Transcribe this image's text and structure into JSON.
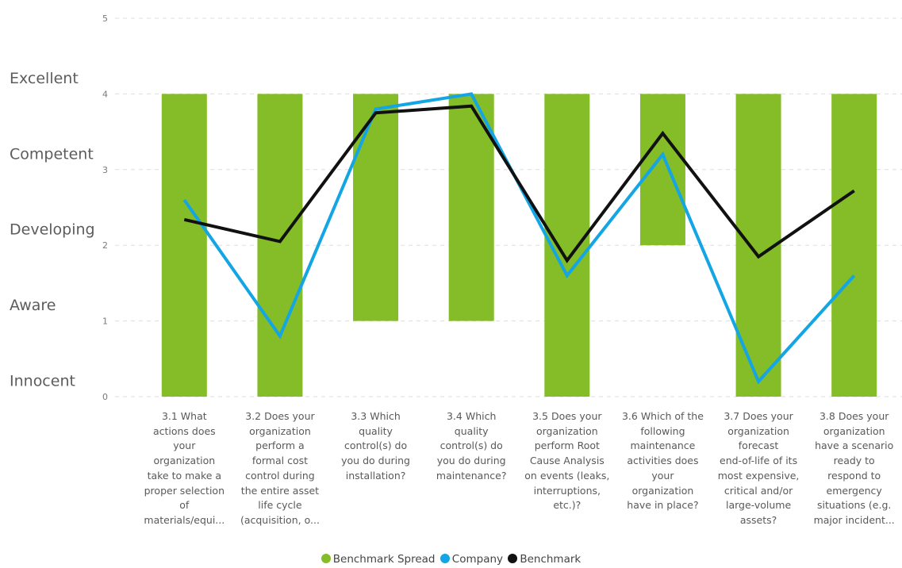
{
  "colors": {
    "spread": "#84bd27",
    "company": "#13a5e4",
    "benchmark": "#111111",
    "level_text": "#5c5c5c",
    "tick_text": "#7a7a7a",
    "grid": "#dddddd"
  },
  "levels": [
    "Innocent",
    "Aware",
    "Developing",
    "Competent",
    "Excellent"
  ],
  "chart_data": {
    "type": "bar",
    "ylim": [
      0,
      5
    ],
    "y_ticks": [
      "0",
      "1",
      "2",
      "3",
      "4",
      "5"
    ],
    "grid": "horizontal dashed",
    "legend_position": "bottom-center",
    "categories": [
      "3.1 What actions does your organization take to make a proper selection of materials/equi...",
      "3.2 Does your organization perform a formal cost control during the entire asset life cycle (acquisition, o...",
      "3.3 Which quality control(s) do you do during installation?",
      "3.4 Which quality control(s) do you do during maintenance?",
      "3.5 Does your organization perform Root Cause Analysis on events (leaks, interruptions, etc.)?",
      "3.6 Which of the following maintenance activities does your organization have in place?",
      "3.7 Does your organization forecast end-of-life of its most expensive, critical and/or large-volume assets?",
      "3.8 Does your organization have a scenario ready to respond to emergency situations (e.g. major incident..."
    ],
    "category_lines": [
      [
        "3.1 What",
        "actions does",
        "your",
        "organization",
        "take to make a",
        "proper selection",
        "of",
        "materials/equi..."
      ],
      [
        "3.2 Does your",
        "organization",
        "perform a",
        "formal cost",
        "control during",
        "the entire asset",
        "life cycle",
        "(acquisition, o..."
      ],
      [
        "3.3 Which",
        "quality",
        "control(s) do",
        "you do during",
        "installation?"
      ],
      [
        "3.4 Which",
        "quality",
        "control(s) do",
        "you do during",
        "maintenance?"
      ],
      [
        "3.5 Does your",
        "organization",
        "perform Root",
        "Cause Analysis",
        "on events (leaks,",
        "interruptions,",
        "etc.)?"
      ],
      [
        "3.6 Which of the",
        "following",
        "maintenance",
        "activities does",
        "your",
        "organization",
        "have in place?"
      ],
      [
        "3.7 Does your",
        "organization",
        "forecast",
        "end-of-life of its",
        "most expensive,",
        "critical and/or",
        "large-volume",
        "assets?"
      ],
      [
        "3.8 Does your",
        "organization",
        "have a scenario",
        "ready to",
        "respond to",
        "emergency",
        "situations (e.g.",
        "major incident..."
      ]
    ],
    "series": [
      {
        "name": "Benchmark Spread",
        "type": "range-bar",
        "low": [
          0,
          0,
          1,
          1,
          0,
          2,
          0,
          0
        ],
        "high": [
          4,
          4,
          4,
          4,
          4,
          4,
          4,
          4
        ]
      },
      {
        "name": "Company",
        "type": "line",
        "values": [
          2.6,
          0.8,
          3.8,
          4.0,
          1.6,
          3.2,
          0.2,
          1.6
        ]
      },
      {
        "name": "Benchmark",
        "type": "line",
        "values": [
          2.34,
          2.05,
          3.75,
          3.84,
          1.8,
          3.48,
          1.85,
          2.72
        ]
      }
    ]
  }
}
